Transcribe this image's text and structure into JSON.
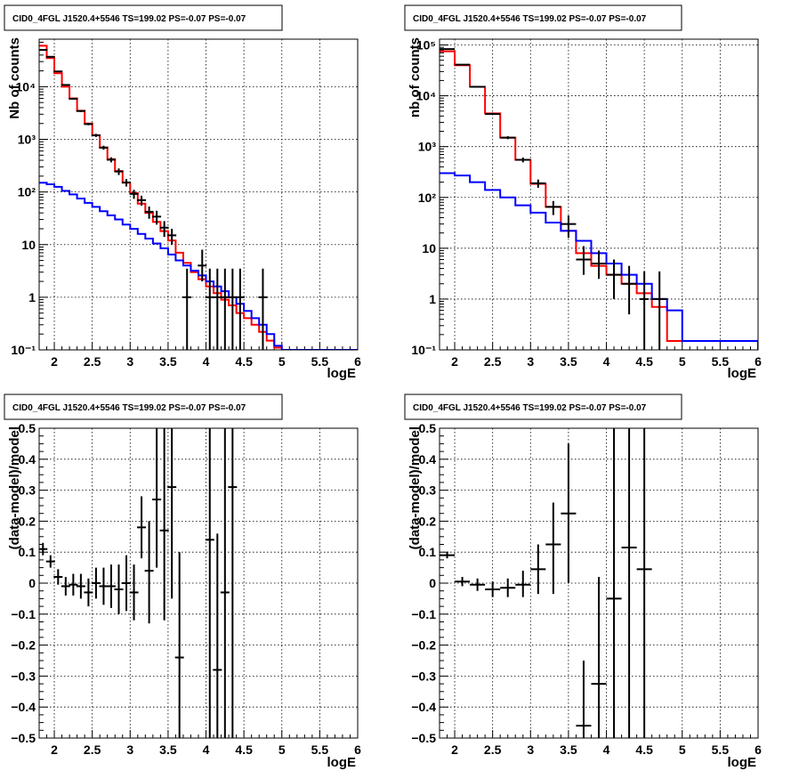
{
  "chart_data": [
    {
      "type": "line",
      "title": "CID0_4FGL J1520.4+5546 TS=199.02 PS=-0.07 PS=-0.07",
      "xlabel": "logE",
      "ylabel": "Nb of counts",
      "xlim": [
        1.8,
        6.0
      ],
      "ylim": [
        0.1,
        80000
      ],
      "yscale": "log",
      "xticks": [
        "2",
        "2.5",
        "3",
        "3.5",
        "4",
        "4.5",
        "5",
        "5.5",
        "6"
      ],
      "yticks": [
        "10⁻¹",
        "1",
        "10",
        "10²",
        "10³",
        "10⁴"
      ],
      "grid": true,
      "series": [
        {
          "color": "#ff0000",
          "step": true,
          "bin_edges": [
            1.8,
            1.9,
            2.0,
            2.1,
            2.2,
            2.3,
            2.4,
            2.5,
            2.6,
            2.7,
            2.8,
            2.9,
            3.0,
            3.1,
            3.2,
            3.3,
            3.4,
            3.5,
            3.6,
            3.7,
            3.8,
            3.9,
            4.0,
            4.1,
            4.2,
            4.3,
            4.4,
            4.5,
            4.6,
            4.7,
            4.8,
            4.9,
            5.0
          ],
          "values": [
            60000,
            35000,
            18000,
            10000,
            6000,
            3500,
            2000,
            1200,
            700,
            420,
            250,
            150,
            95,
            60,
            40,
            27,
            18,
            12,
            7,
            4.5,
            3,
            2.2,
            1.6,
            1.2,
            0.9,
            0.7,
            0.5,
            0.4,
            0.3,
            0.22,
            0.15,
            0.11
          ]
        },
        {
          "color": "#0000ff",
          "step": true,
          "bin_edges": [
            1.8,
            1.9,
            2.0,
            2.1,
            2.2,
            2.3,
            2.4,
            2.5,
            2.6,
            2.7,
            2.8,
            2.9,
            3.0,
            3.1,
            3.2,
            3.3,
            3.4,
            3.5,
            3.6,
            3.7,
            3.8,
            3.9,
            4.0,
            4.1,
            4.2,
            4.3,
            4.4,
            4.5,
            4.6,
            4.7,
            4.8,
            4.9,
            5.0,
            6.0
          ],
          "values": [
            150,
            140,
            125,
            105,
            90,
            75,
            62,
            52,
            43,
            36,
            30,
            24,
            20,
            16,
            13,
            10.5,
            8.5,
            6.5,
            5,
            4,
            3.2,
            2.6,
            2,
            1.6,
            1.3,
            1,
            0.75,
            0.55,
            0.4,
            0.3,
            0.2,
            0.12,
            0.1
          ]
        }
      ],
      "points": [
        {
          "x": 1.85,
          "y": 50000,
          "xerr": 0.05,
          "yerr_lo": 700,
          "yerr_hi": 700
        },
        {
          "x": 1.95,
          "y": 37000,
          "xerr": 0.05,
          "yerr_lo": 600,
          "yerr_hi": 600
        },
        {
          "x": 2.05,
          "y": 19500,
          "xerr": 0.05,
          "yerr_lo": 400,
          "yerr_hi": 400
        },
        {
          "x": 2.15,
          "y": 10800,
          "xerr": 0.05,
          "yerr_lo": 300,
          "yerr_hi": 300
        },
        {
          "x": 2.25,
          "y": 5900,
          "xerr": 0.05,
          "yerr_lo": 200,
          "yerr_hi": 200
        },
        {
          "x": 2.35,
          "y": 3450,
          "xerr": 0.05,
          "yerr_lo": 150,
          "yerr_hi": 150
        },
        {
          "x": 2.45,
          "y": 1950,
          "xerr": 0.05,
          "yerr_lo": 100,
          "yerr_hi": 100
        },
        {
          "x": 2.55,
          "y": 1190,
          "xerr": 0.05,
          "yerr_lo": 80,
          "yerr_hi": 80
        },
        {
          "x": 2.65,
          "y": 695,
          "xerr": 0.05,
          "yerr_lo": 60,
          "yerr_hi": 60
        },
        {
          "x": 2.75,
          "y": 410,
          "xerr": 0.05,
          "yerr_lo": 45,
          "yerr_hi": 45
        },
        {
          "x": 2.85,
          "y": 245,
          "xerr": 0.05,
          "yerr_lo": 35,
          "yerr_hi": 35
        },
        {
          "x": 2.95,
          "y": 152,
          "xerr": 0.05,
          "yerr_lo": 25,
          "yerr_hi": 25
        },
        {
          "x": 3.05,
          "y": 92,
          "xerr": 0.05,
          "yerr_lo": 18,
          "yerr_hi": 18
        },
        {
          "x": 3.15,
          "y": 70,
          "xerr": 0.05,
          "yerr_lo": 15,
          "yerr_hi": 15
        },
        {
          "x": 3.25,
          "y": 42,
          "xerr": 0.05,
          "yerr_lo": 11,
          "yerr_hi": 11
        },
        {
          "x": 3.35,
          "y": 34,
          "xerr": 0.05,
          "yerr_lo": 10,
          "yerr_hi": 10
        },
        {
          "x": 3.45,
          "y": 21,
          "xerr": 0.05,
          "yerr_lo": 7,
          "yerr_hi": 7
        },
        {
          "x": 3.55,
          "y": 15,
          "xerr": 0.05,
          "yerr_lo": 5,
          "yerr_hi": 5
        },
        {
          "x": 3.75,
          "y": 1,
          "xerr": 0.0,
          "yerr_lo": 0.9,
          "yerr_hi": 2.5
        },
        {
          "x": 3.95,
          "y": 4,
          "xerr": 0.05,
          "yerr_lo": 2,
          "yerr_hi": 4
        },
        {
          "x": 4.05,
          "y": 1,
          "xerr": 0.0,
          "yerr_lo": 0.9,
          "yerr_hi": 2.5
        },
        {
          "x": 4.15,
          "y": 1,
          "xerr": 0.0,
          "yerr_lo": 0.9,
          "yerr_hi": 2.5
        },
        {
          "x": 4.25,
          "y": 1,
          "xerr": 0.05,
          "yerr_lo": 0.9,
          "yerr_hi": 2.5
        },
        {
          "x": 4.35,
          "y": 1,
          "xerr": 0.05,
          "yerr_lo": 0.9,
          "yerr_hi": 2.5
        },
        {
          "x": 4.45,
          "y": 1,
          "xerr": 0.0,
          "yerr_lo": 0.9,
          "yerr_hi": 2.5
        },
        {
          "x": 4.75,
          "y": 1,
          "xerr": 0.05,
          "yerr_lo": 0.9,
          "yerr_hi": 2.5
        }
      ]
    },
    {
      "type": "line",
      "title": "CID0_4FGL J1520.4+5546 TS=199.02 PS=-0.07 PS=-0.07",
      "xlabel": "logE",
      "ylabel": "nb of counts",
      "xlim": [
        1.8,
        6.0
      ],
      "ylim": [
        0.1,
        130000
      ],
      "yscale": "log",
      "xticks": [
        "2",
        "2.5",
        "3",
        "3.5",
        "4",
        "4.5",
        "5",
        "5.5",
        "6"
      ],
      "yticks": [
        "10⁻¹",
        "1",
        "10",
        "10²",
        "10³",
        "10⁴",
        "10⁵"
      ],
      "grid": true,
      "series": [
        {
          "color": "#ff0000",
          "step": true,
          "bin_edges": [
            1.8,
            2.0,
            2.2,
            2.4,
            2.6,
            2.8,
            3.0,
            3.2,
            3.4,
            3.6,
            3.8,
            4.0,
            4.2,
            4.4,
            4.6,
            4.8,
            5.0
          ],
          "values": [
            75000,
            40000,
            15000,
            4500,
            1500,
            550,
            185,
            65,
            22,
            8,
            4.5,
            3,
            2,
            1.3,
            0.7,
            0.15
          ]
        },
        {
          "color": "#0000ff",
          "step": true,
          "bin_edges": [
            1.8,
            2.0,
            2.2,
            2.4,
            2.6,
            2.8,
            3.0,
            3.2,
            3.4,
            3.6,
            3.8,
            4.0,
            4.2,
            4.4,
            4.6,
            4.8,
            5.0,
            6.0
          ],
          "values": [
            300,
            270,
            200,
            140,
            100,
            70,
            50,
            32,
            22,
            14,
            8,
            5,
            3,
            2,
            1,
            0.6,
            0.15,
            0.1
          ]
        }
      ],
      "points": [
        {
          "x": 1.9,
          "y": 83000,
          "xerr": 0.1,
          "yerr_lo": 900,
          "yerr_hi": 900
        },
        {
          "x": 2.1,
          "y": 41000,
          "xerr": 0.1,
          "yerr_lo": 600,
          "yerr_hi": 600
        },
        {
          "x": 2.3,
          "y": 15000,
          "xerr": 0.1,
          "yerr_lo": 400,
          "yerr_hi": 400
        },
        {
          "x": 2.5,
          "y": 4400,
          "xerr": 0.1,
          "yerr_lo": 200,
          "yerr_hi": 200
        },
        {
          "x": 2.7,
          "y": 1500,
          "xerr": 0.1,
          "yerr_lo": 100,
          "yerr_hi": 100
        },
        {
          "x": 2.9,
          "y": 550,
          "xerr": 0.1,
          "yerr_lo": 60,
          "yerr_hi": 60
        },
        {
          "x": 3.1,
          "y": 190,
          "xerr": 0.1,
          "yerr_lo": 35,
          "yerr_hi": 35
        },
        {
          "x": 3.3,
          "y": 65,
          "xerr": 0.1,
          "yerr_lo": 20,
          "yerr_hi": 20
        },
        {
          "x": 3.5,
          "y": 30,
          "xerr": 0.1,
          "yerr_lo": 14,
          "yerr_hi": 14
        },
        {
          "x": 3.7,
          "y": 6,
          "xerr": 0.1,
          "yerr_lo": 3,
          "yerr_hi": 5
        },
        {
          "x": 3.9,
          "y": 5,
          "xerr": 0.1,
          "yerr_lo": 2.5,
          "yerr_hi": 4
        },
        {
          "x": 4.1,
          "y": 3,
          "xerr": 0.1,
          "yerr_lo": 2,
          "yerr_hi": 3
        },
        {
          "x": 4.3,
          "y": 2,
          "xerr": 0.1,
          "yerr_lo": 1.5,
          "yerr_hi": 2.5
        },
        {
          "x": 4.5,
          "y": 1,
          "xerr": 0.0,
          "yerr_lo": 0.9,
          "yerr_hi": 2.5
        },
        {
          "x": 4.7,
          "y": 1,
          "xerr": 0.1,
          "yerr_lo": 0.9,
          "yerr_hi": 2.5
        }
      ]
    },
    {
      "type": "scatter",
      "title": "CID0_4FGL J1520.4+5546 TS=199.02 PS=-0.07 PS=-0.07",
      "xlabel": "logE",
      "ylabel": "(data-model)/model",
      "xlim": [
        1.8,
        6.0
      ],
      "ylim": [
        -0.5,
        0.5
      ],
      "yscale": "linear",
      "xticks": [
        "2",
        "2.5",
        "3",
        "3.5",
        "4",
        "4.5",
        "5",
        "5.5",
        "6"
      ],
      "yticks": [
        "−0.5",
        "−0.4",
        "−0.3",
        "−0.2",
        "−0.1",
        "0",
        "0.1",
        "0.2",
        "0.3",
        "0.4",
        "0.5"
      ],
      "grid": true,
      "points": [
        {
          "x": 1.85,
          "y": 0.11,
          "xerr": 0.05,
          "yerr_lo": 0.02,
          "yerr_hi": 0.02
        },
        {
          "x": 1.95,
          "y": 0.07,
          "xerr": 0.05,
          "yerr_lo": 0.02,
          "yerr_hi": 0.02
        },
        {
          "x": 2.05,
          "y": 0.02,
          "xerr": 0.05,
          "yerr_lo": 0.025,
          "yerr_hi": 0.025
        },
        {
          "x": 2.15,
          "y": -0.01,
          "xerr": 0.05,
          "yerr_lo": 0.03,
          "yerr_hi": 0.03
        },
        {
          "x": 2.25,
          "y": -0.005,
          "xerr": 0.05,
          "yerr_lo": 0.035,
          "yerr_hi": 0.035
        },
        {
          "x": 2.35,
          "y": -0.01,
          "xerr": 0.05,
          "yerr_lo": 0.04,
          "yerr_hi": 0.04
        },
        {
          "x": 2.45,
          "y": -0.03,
          "xerr": 0.05,
          "yerr_lo": 0.045,
          "yerr_hi": 0.045
        },
        {
          "x": 2.55,
          "y": 0.0,
          "xerr": 0.05,
          "yerr_lo": 0.05,
          "yerr_hi": 0.05
        },
        {
          "x": 2.65,
          "y": -0.01,
          "xerr": 0.05,
          "yerr_lo": 0.06,
          "yerr_hi": 0.06
        },
        {
          "x": 2.75,
          "y": -0.01,
          "xerr": 0.05,
          "yerr_lo": 0.07,
          "yerr_hi": 0.07
        },
        {
          "x": 2.85,
          "y": -0.02,
          "xerr": 0.05,
          "yerr_lo": 0.08,
          "yerr_hi": 0.08
        },
        {
          "x": 2.95,
          "y": 0.0,
          "xerr": 0.05,
          "yerr_lo": 0.09,
          "yerr_hi": 0.09
        },
        {
          "x": 3.05,
          "y": -0.03,
          "xerr": 0.05,
          "yerr_lo": 0.09,
          "yerr_hi": 0.09
        },
        {
          "x": 3.15,
          "y": 0.18,
          "xerr": 0.05,
          "yerr_lo": 0.1,
          "yerr_hi": 0.1
        },
        {
          "x": 3.25,
          "y": 0.04,
          "xerr": 0.05,
          "yerr_lo": 0.17,
          "yerr_hi": 0.16
        },
        {
          "x": 3.35,
          "y": 0.27,
          "xerr": 0.05,
          "yerr_lo": 0.22,
          "yerr_hi": 0.23
        },
        {
          "x": 3.45,
          "y": 0.17,
          "xerr": 0.05,
          "yerr_lo": 0.29,
          "yerr_hi": 0.33
        },
        {
          "x": 3.55,
          "y": 0.31,
          "xerr": 0.05,
          "yerr_lo": 0.36,
          "yerr_hi": 0.19
        },
        {
          "x": 3.65,
          "y": -0.24,
          "xerr": 0.05,
          "yerr_lo": 0.26,
          "yerr_hi": 0.34
        },
        {
          "x": 4.05,
          "y": 0.14,
          "xerr": 0.05,
          "yerr_lo": 0.64,
          "yerr_hi": 0.36
        },
        {
          "x": 4.15,
          "y": -0.28,
          "xerr": 0.05,
          "yerr_lo": 0.22,
          "yerr_hi": 0.44
        },
        {
          "x": 4.25,
          "y": -0.03,
          "xerr": 0.05,
          "yerr_lo": 0.47,
          "yerr_hi": 0.53
        },
        {
          "x": 4.35,
          "y": 0.31,
          "xerr": 0.05,
          "yerr_lo": 0.81,
          "yerr_hi": 0.19
        }
      ]
    },
    {
      "type": "scatter",
      "title": "CID0_4FGL J1520.4+5546 TS=199.02 PS=-0.07 PS=-0.07",
      "xlabel": "logE",
      "ylabel": "(data-model)/model",
      "xlim": [
        1.8,
        6.0
      ],
      "ylim": [
        -0.5,
        0.5
      ],
      "yscale": "linear",
      "xticks": [
        "2",
        "2.5",
        "3",
        "3.5",
        "4",
        "4.5",
        "5",
        "5.5",
        "6"
      ],
      "yticks": [
        "−0.5",
        "−0.4",
        "−0.3",
        "−0.2",
        "−0.1",
        "0",
        "0.1",
        "0.2",
        "0.3",
        "0.4",
        "0.5"
      ],
      "grid": true,
      "points": [
        {
          "x": 1.9,
          "y": 0.09,
          "xerr": 0.1,
          "yerr_lo": 0.01,
          "yerr_hi": 0.01
        },
        {
          "x": 2.1,
          "y": 0.005,
          "xerr": 0.1,
          "yerr_lo": 0.015,
          "yerr_hi": 0.015
        },
        {
          "x": 2.3,
          "y": -0.005,
          "xerr": 0.1,
          "yerr_lo": 0.02,
          "yerr_hi": 0.02
        },
        {
          "x": 2.5,
          "y": -0.02,
          "xerr": 0.1,
          "yerr_lo": 0.025,
          "yerr_hi": 0.025
        },
        {
          "x": 2.7,
          "y": -0.015,
          "xerr": 0.1,
          "yerr_lo": 0.03,
          "yerr_hi": 0.03
        },
        {
          "x": 2.9,
          "y": -0.005,
          "xerr": 0.1,
          "yerr_lo": 0.04,
          "yerr_hi": 0.045
        },
        {
          "x": 3.1,
          "y": 0.045,
          "xerr": 0.1,
          "yerr_lo": 0.08,
          "yerr_hi": 0.08
        },
        {
          "x": 3.3,
          "y": 0.125,
          "xerr": 0.1,
          "yerr_lo": 0.16,
          "yerr_hi": 0.135
        },
        {
          "x": 3.5,
          "y": 0.225,
          "xerr": 0.1,
          "yerr_lo": 0.225,
          "yerr_hi": 0.225
        },
        {
          "x": 3.7,
          "y": -0.46,
          "xerr": 0.1,
          "yerr_lo": 0.04,
          "yerr_hi": 0.21
        },
        {
          "x": 3.9,
          "y": -0.325,
          "xerr": 0.1,
          "yerr_lo": 0.175,
          "yerr_hi": 0.345
        },
        {
          "x": 4.1,
          "y": -0.05,
          "xerr": 0.1,
          "yerr_lo": 0.45,
          "yerr_hi": 0.55
        },
        {
          "x": 4.3,
          "y": 0.115,
          "xerr": 0.1,
          "yerr_lo": 0.615,
          "yerr_hi": 0.385
        },
        {
          "x": 4.5,
          "y": 0.045,
          "xerr": 0.1,
          "yerr_lo": 0.545,
          "yerr_hi": 0.455
        }
      ]
    }
  ]
}
